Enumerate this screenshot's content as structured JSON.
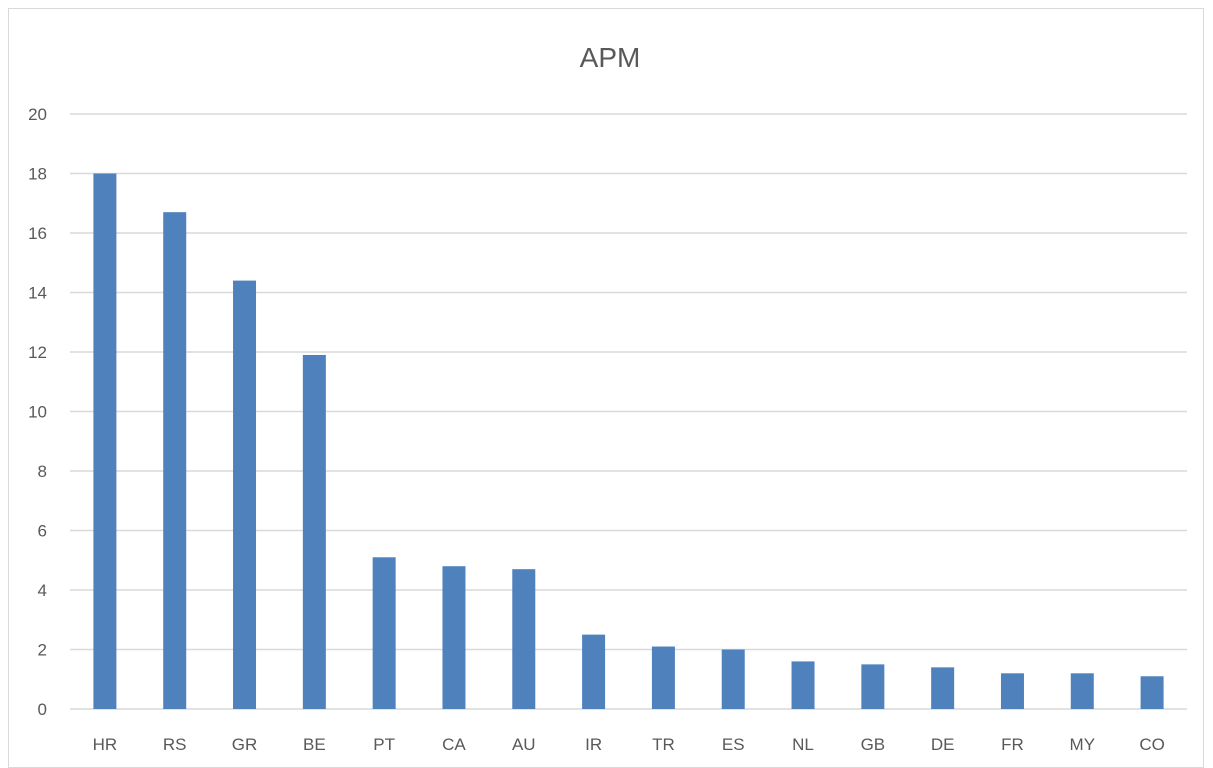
{
  "chart_data": {
    "type": "bar",
    "title": "APM",
    "xlabel": "",
    "ylabel": "",
    "categories": [
      "HR",
      "RS",
      "GR",
      "BE",
      "PT",
      "CA",
      "AU",
      "IR",
      "TR",
      "ES",
      "NL",
      "GB",
      "DE",
      "FR",
      "MY",
      "CO"
    ],
    "values": [
      18,
      16.7,
      14.4,
      11.9,
      5.1,
      4.8,
      4.7,
      2.5,
      2.1,
      2.0,
      1.6,
      1.5,
      1.4,
      1.2,
      1.2,
      1.1
    ],
    "ylim": [
      0,
      20
    ],
    "yticks": [
      0,
      2,
      4,
      6,
      8,
      10,
      12,
      14,
      16,
      18,
      20
    ],
    "grid": true,
    "legend": "none",
    "bar_color": "#4f81bd"
  }
}
